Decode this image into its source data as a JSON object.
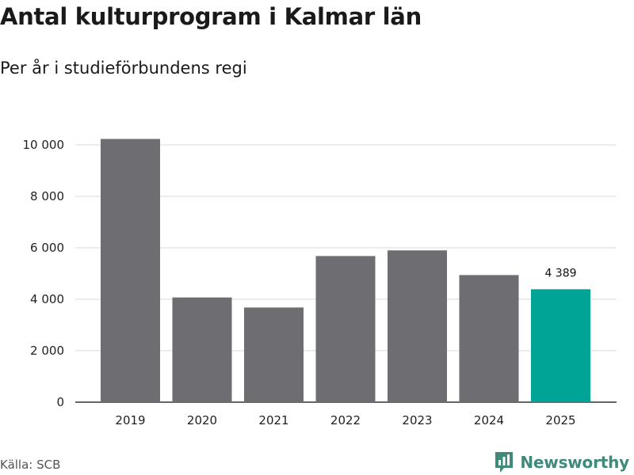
{
  "header": {
    "title": "Antal kulturprogram i Kalmar län",
    "subtitle": "Per år i studieförbundens regi"
  },
  "footer": {
    "source": "Källa: SCB",
    "brand": "Newsworthy"
  },
  "colors": {
    "bar": "#6e6d72",
    "highlight": "#00a497",
    "grid": "#d9d9d9",
    "axis": "#333333",
    "brand": "#3f8a7a"
  },
  "chart_data": {
    "type": "bar",
    "title": "Antal kulturprogram i Kalmar län",
    "subtitle": "Per år i studieförbundens regi",
    "categories": [
      "2019",
      "2020",
      "2021",
      "2022",
      "2023",
      "2024",
      "2025"
    ],
    "values": [
      10230,
      4070,
      3680,
      5680,
      5900,
      4940,
      4389
    ],
    "highlight_index": 6,
    "data_labels": [
      {
        "index": 6,
        "text": "4 389"
      }
    ],
    "xlabel": "",
    "ylabel": "",
    "ylim": [
      0,
      10000
    ],
    "yticks": [
      0,
      2000,
      4000,
      6000,
      8000,
      10000
    ],
    "ytick_labels": [
      "0",
      "2 000",
      "4 000",
      "6 000",
      "8 000",
      "10 000"
    ],
    "grid": true,
    "legend": "none"
  }
}
